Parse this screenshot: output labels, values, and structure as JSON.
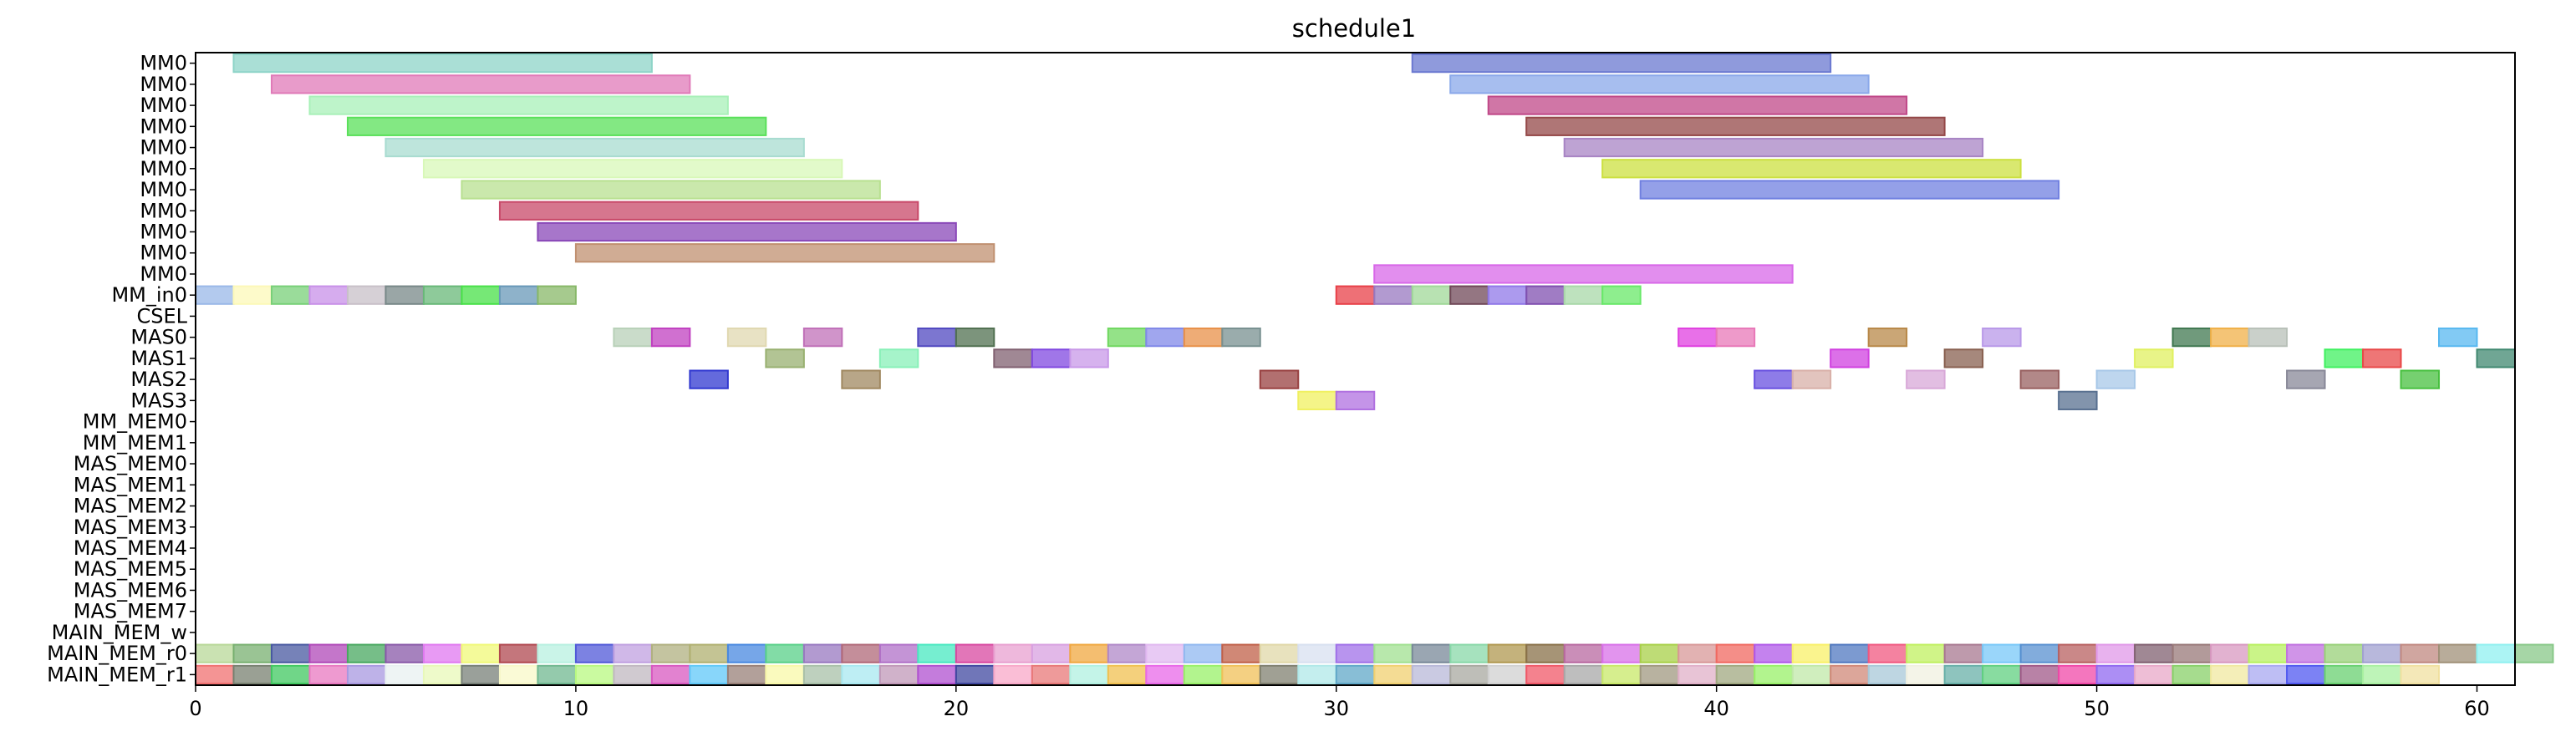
{
  "chart_data": {
    "type": "gantt",
    "title": "schedule1",
    "xlim": [
      0,
      61
    ],
    "xticks": [
      0,
      10,
      20,
      30,
      40,
      50,
      60
    ],
    "rows": [
      "MM0",
      "MM0",
      "MM0",
      "MM0",
      "MM0",
      "MM0",
      "MM0",
      "MM0",
      "MM0",
      "MM0",
      "MM0",
      "MM_in0",
      "CSEL",
      "MAS0",
      "MAS1",
      "MAS2",
      "MAS3",
      "MM_MEM0",
      "MM_MEM1",
      "MAS_MEM0",
      "MAS_MEM1",
      "MAS_MEM2",
      "MAS_MEM3",
      "MAS_MEM4",
      "MAS_MEM5",
      "MAS_MEM6",
      "MAS_MEM7",
      "MAIN_MEM_w",
      "MAIN_MEM_r0",
      "MAIN_MEM_r1"
    ],
    "bars": [
      {
        "row": 0,
        "start": 1,
        "end": 12,
        "color": "#8ed4c8"
      },
      {
        "row": 0,
        "start": 32,
        "end": 43,
        "color": "#6a78d0"
      },
      {
        "row": 1,
        "start": 2,
        "end": 13,
        "color": "#e07ab8"
      },
      {
        "row": 1,
        "start": 33,
        "end": 44,
        "color": "#8aa8ea"
      },
      {
        "row": 2,
        "start": 3,
        "end": 14,
        "color": "#a8f0b8"
      },
      {
        "row": 2,
        "start": 34,
        "end": 45,
        "color": "#c04888"
      },
      {
        "row": 3,
        "start": 4,
        "end": 15,
        "color": "#5ae05a"
      },
      {
        "row": 3,
        "start": 35,
        "end": 46,
        "color": "#944848"
      },
      {
        "row": 4,
        "start": 5,
        "end": 16,
        "color": "#a8dcd0"
      },
      {
        "row": 4,
        "start": 36,
        "end": 47,
        "color": "#a884c4"
      },
      {
        "row": 5,
        "start": 6,
        "end": 17,
        "color": "#d8f8b8"
      },
      {
        "row": 5,
        "start": 37,
        "end": 48,
        "color": "#cce040"
      },
      {
        "row": 6,
        "start": 7,
        "end": 18,
        "color": "#b8e090"
      },
      {
        "row": 6,
        "start": 38,
        "end": 49,
        "color": "#7080e0"
      },
      {
        "row": 7,
        "start": 8,
        "end": 19,
        "color": "#c84868"
      },
      {
        "row": 8,
        "start": 9,
        "end": 20,
        "color": "#8a48b8"
      },
      {
        "row": 9,
        "start": 10,
        "end": 21,
        "color": "#c09070"
      },
      {
        "row": 10,
        "start": 31,
        "end": 42,
        "color": "#d868e8"
      },
      {
        "row": 11,
        "start": 0,
        "end": 1,
        "color": "#9ab8e8"
      },
      {
        "row": 11,
        "start": 1,
        "end": 2,
        "color": "#fcf8b8"
      },
      {
        "row": 11,
        "start": 2,
        "end": 3,
        "color": "#78d078"
      },
      {
        "row": 11,
        "start": 3,
        "end": 4,
        "color": "#c890e8"
      },
      {
        "row": 11,
        "start": 4,
        "end": 5,
        "color": "#c8c0c8"
      },
      {
        "row": 11,
        "start": 5,
        "end": 6,
        "color": "#788888"
      },
      {
        "row": 11,
        "start": 6,
        "end": 7,
        "color": "#68b878"
      },
      {
        "row": 11,
        "start": 7,
        "end": 8,
        "color": "#48e048"
      },
      {
        "row": 11,
        "start": 8,
        "end": 9,
        "color": "#6898b8"
      },
      {
        "row": 11,
        "start": 9,
        "end": 10,
        "color": "#88b868"
      },
      {
        "row": 11,
        "start": 30,
        "end": 31,
        "color": "#e84048"
      },
      {
        "row": 11,
        "start": 31,
        "end": 32,
        "color": "#9878c0"
      },
      {
        "row": 11,
        "start": 32,
        "end": 33,
        "color": "#a0d898"
      },
      {
        "row": 11,
        "start": 33,
        "end": 34,
        "color": "#704858"
      },
      {
        "row": 11,
        "start": 34,
        "end": 35,
        "color": "#9078e8"
      },
      {
        "row": 11,
        "start": 35,
        "end": 36,
        "color": "#8050b0"
      },
      {
        "row": 11,
        "start": 36,
        "end": 37,
        "color": "#a8d8a8"
      },
      {
        "row": 11,
        "start": 37,
        "end": 38,
        "color": "#68e868"
      },
      {
        "row": 13,
        "start": 11,
        "end": 12,
        "color": "#b8d0b8"
      },
      {
        "row": 13,
        "start": 12,
        "end": 13,
        "color": "#c040c0"
      },
      {
        "row": 13,
        "start": 14,
        "end": 15,
        "color": "#e0d8b0"
      },
      {
        "row": 13,
        "start": 16,
        "end": 17,
        "color": "#c070b8"
      },
      {
        "row": 13,
        "start": 19,
        "end": 20,
        "color": "#5048c0"
      },
      {
        "row": 13,
        "start": 20,
        "end": 21,
        "color": "#507050"
      },
      {
        "row": 13,
        "start": 24,
        "end": 25,
        "color": "#70d860"
      },
      {
        "row": 13,
        "start": 25,
        "end": 26,
        "color": "#8088e8"
      },
      {
        "row": 13,
        "start": 26,
        "end": 27,
        "color": "#e89048"
      },
      {
        "row": 13,
        "start": 27,
        "end": 28,
        "color": "#789090"
      },
      {
        "row": 13,
        "start": 39,
        "end": 40,
        "color": "#e040e0"
      },
      {
        "row": 13,
        "start": 40,
        "end": 41,
        "color": "#e878b8"
      },
      {
        "row": 13,
        "start": 44,
        "end": 45,
        "color": "#b88848"
      },
      {
        "row": 13,
        "start": 47,
        "end": 48,
        "color": "#b898e8"
      },
      {
        "row": 13,
        "start": 52,
        "end": 53,
        "color": "#407850"
      },
      {
        "row": 13,
        "start": 53,
        "end": 54,
        "color": "#f0b048"
      },
      {
        "row": 13,
        "start": 54,
        "end": 55,
        "color": "#b8c0b8"
      },
      {
        "row": 13,
        "start": 59,
        "end": 60,
        "color": "#58b8f0"
      },
      {
        "row": 14,
        "start": 15,
        "end": 16,
        "color": "#98b070"
      },
      {
        "row": 14,
        "start": 18,
        "end": 19,
        "color": "#88f0b8"
      },
      {
        "row": 14,
        "start": 21,
        "end": 22,
        "color": "#806070"
      },
      {
        "row": 14,
        "start": 22,
        "end": 23,
        "color": "#8048e0"
      },
      {
        "row": 14,
        "start": 23,
        "end": 24,
        "color": "#c898e8"
      },
      {
        "row": 14,
        "start": 43,
        "end": 44,
        "color": "#d040e0"
      },
      {
        "row": 14,
        "start": 46,
        "end": 47,
        "color": "#886050"
      },
      {
        "row": 14,
        "start": 51,
        "end": 52,
        "color": "#e0f060"
      },
      {
        "row": 14,
        "start": 56,
        "end": 57,
        "color": "#40f060"
      },
      {
        "row": 14,
        "start": 57,
        "end": 58,
        "color": "#e84848"
      },
      {
        "row": 14,
        "start": 60,
        "end": 61,
        "color": "#408870"
      },
      {
        "row": 15,
        "start": 13,
        "end": 14,
        "color": "#3038d0"
      },
      {
        "row": 15,
        "start": 17,
        "end": 18,
        "color": "#a08860"
      },
      {
        "row": 15,
        "start": 28,
        "end": 29,
        "color": "#984040"
      },
      {
        "row": 15,
        "start": 41,
        "end": 42,
        "color": "#6850e0"
      },
      {
        "row": 15,
        "start": 42,
        "end": 43,
        "color": "#d8b0a8"
      },
      {
        "row": 15,
        "start": 45,
        "end": 46,
        "color": "#d8a8d8"
      },
      {
        "row": 15,
        "start": 48,
        "end": 49,
        "color": "#986060"
      },
      {
        "row": 15,
        "start": 50,
        "end": 51,
        "color": "#a8c8e8"
      },
      {
        "row": 15,
        "start": 55,
        "end": 56,
        "color": "#888898"
      },
      {
        "row": 15,
        "start": 58,
        "end": 59,
        "color": "#48c040"
      },
      {
        "row": 16,
        "start": 29,
        "end": 30,
        "color": "#f0f060"
      },
      {
        "row": 16,
        "start": 30,
        "end": 31,
        "color": "#b070e0"
      },
      {
        "row": 16,
        "start": 49,
        "end": 50,
        "color": "#587090"
      }
    ],
    "r0_colors": [
      "#b8d898",
      "#78b070",
      "#4858a0",
      "#b048b8",
      "#48a860",
      "#8858a8",
      "#e078f0",
      "#f0f878",
      "#b04850",
      "#b8f0e0",
      "#5058d8",
      "#c0a0e0",
      "#b0b080",
      "#b0b070",
      "#4888e0",
      "#58d088",
      "#9878c0",
      "#b06878",
      "#b070c8",
      "#48e8c0",
      "#d848a0",
      "#e8a0d0",
      "#d8a0e0",
      "#f0a840",
      "#b088c8",
      "#e0b8f0",
      "#90b8f0",
      "#c06048",
      "#e0d8a8",
      "#d8e0f0",
      "#a070e8",
      "#a0e090",
      "#788898",
      "#88d8a8",
      "#b09850",
      "#887048",
      "#b868a0",
      "#d870e8",
      "#a8d048",
      "#d89898",
      "#f06860",
      "#b058e8",
      "#f8f068",
      "#5078c0",
      "#f05880",
      "#c0f060",
      "#a87890",
      "#78c8f8",
      "#5890d0",
      "#b86060",
      "#e098e8",
      "#806070",
      "#987878",
      "#d898c0",
      "#b8f060",
      "#c070e0",
      "#98d078",
      "#a0a0d0",
      "#c08880",
      "#a09078",
      "#90f0f0",
      "#88c888"
    ],
    "r1_colors": [
      "#f07070",
      "#788070",
      "#40c860",
      "#e878c0",
      "#a898e0",
      "#e8f0f0",
      "#e8f8b8",
      "#788078",
      "#f8f8c8",
      "#70b890",
      "#b8f880",
      "#c0b8c0",
      "#d858c0",
      "#60c8f8",
      "#988078",
      "#f8f8a8",
      "#a8c0a8",
      "#a8e8f0",
      "#c098b8",
      "#b050d0",
      "#4048a0",
      "#f8a8c8",
      "#e87878",
      "#b0f0e0",
      "#f0c050",
      "#e868e8",
      "#98f068",
      "#f0c058",
      "#808070",
      "#b0e8e8",
      "#60a8c8",
      "#f0d070",
      "#b8b8d8",
      "#a8a8a0",
      "#d0d0d0",
      "#f05868",
      "#a8a8a8",
      "#c8e868",
      "#a09880",
      "#e0b0c8",
      "#a0a880",
      "#98f068",
      "#c0e8a8",
      "#d08878",
      "#a8c8d8",
      "#f0f0e0",
      "#68b0a8",
      "#60d080",
      "#a05888",
      "#f048a8",
      "#9068f0",
      "#e8a8c8",
      "#88d068",
      "#f0e8a0",
      "#a8a8f0",
      "#5058f0",
      "#68d070",
      "#a8f0a0",
      "#f0e0a0"
    ]
  }
}
